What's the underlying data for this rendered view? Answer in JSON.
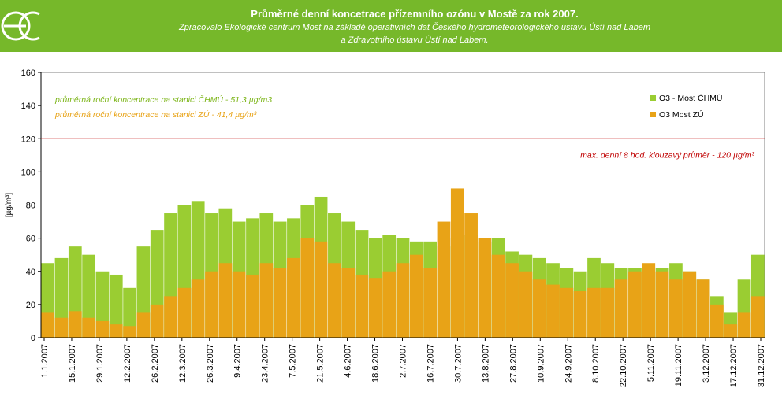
{
  "header": {
    "title": "Průměrné denní koncetrace přízemního ozónu v Mostě za rok 2007.",
    "subtitle_line1": "Zpracovalo Ekologické centrum Most na základě operativních dat Českého hydrometeorologického ústavu Ústí nad Labem",
    "subtitle_line2": "a Zdravotního ústavu Ústí nad Labem.",
    "background_color": "#76b82a",
    "logo_icon": "ec-leaf-logo"
  },
  "chart_data": {
    "type": "bar",
    "title": "Průměrné denní koncetrace přízemního ozónu v Mostě za rok 2007.",
    "ylabel": "[µg/m³]",
    "ylim": [
      0,
      160
    ],
    "yticks": [
      0,
      20,
      40,
      60,
      80,
      100,
      120,
      140,
      160
    ],
    "xlim": [
      "1.1.2007",
      "31.12.2007"
    ],
    "xtick_labels": [
      "1.1.2007",
      "15.1.2007",
      "29.1.2007",
      "12.2.2007",
      "26.2.2007",
      "12.3.2007",
      "26.3.2007",
      "9.4.2007",
      "23.4.2007",
      "7.5.2007",
      "21.5.2007",
      "4.6.2007",
      "18.6.2007",
      "2.7.2007",
      "16.7.2007",
      "30.7.2007",
      "13.8.2007",
      "27.8.2007",
      "10.9.2007",
      "24.9.2007",
      "8.10.2007",
      "22.10.2007",
      "5.11.2007",
      "19.11.2007",
      "3.12.2007",
      "17.12.2007",
      "31.12.2007"
    ],
    "grid": false,
    "legend_position": "top-right",
    "plot_background": "#ffffff",
    "series": [
      {
        "name": "O3 - Most ČHMÚ",
        "color": "#9acd32",
        "sampling": "weekly averages of daily values (estimated from chart)",
        "values": [
          45,
          48,
          55,
          50,
          40,
          38,
          30,
          55,
          65,
          75,
          80,
          82,
          75,
          78,
          70,
          72,
          75,
          70,
          72,
          80,
          85,
          75,
          70,
          65,
          60,
          62,
          60,
          58,
          58,
          55,
          60,
          62,
          58,
          60,
          52,
          50,
          48,
          45,
          42,
          40,
          48,
          45,
          42,
          42,
          40,
          42,
          45,
          40,
          35,
          25,
          15,
          35,
          50
        ]
      },
      {
        "name": "O3 Most ZÚ",
        "color": "#e8a317",
        "sampling": "weekly averages of daily values (estimated from chart)",
        "values": [
          15,
          12,
          16,
          12,
          10,
          8,
          7,
          15,
          20,
          25,
          30,
          35,
          40,
          45,
          40,
          38,
          45,
          42,
          48,
          60,
          58,
          45,
          42,
          38,
          36,
          40,
          45,
          50,
          42,
          70,
          90,
          75,
          60,
          50,
          45,
          40,
          35,
          32,
          30,
          28,
          30,
          30,
          35,
          40,
          45,
          40,
          35,
          40,
          35,
          20,
          8,
          15,
          25
        ]
      }
    ],
    "reference_line": {
      "value": 120,
      "label": "max. denní 8 hod. klouzavý průměr - 120 µg/m³",
      "color": "#c00000"
    },
    "annotations": [
      {
        "text": "průměrná roční koncentrace na stanici ČHMÚ - 51,3 µg/m3",
        "color": "#7cb518"
      },
      {
        "text": "průměrná roční koncentrace na stanici ZÚ - 41,4 µg/m³",
        "color": "#e8a317"
      }
    ]
  }
}
